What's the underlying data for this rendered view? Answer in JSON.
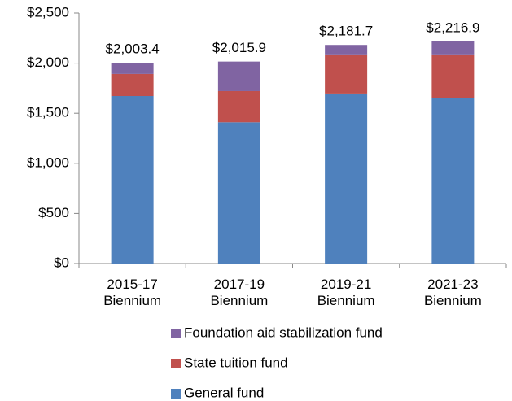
{
  "chart_data": {
    "type": "stacked_bar",
    "categories": [
      "2015-17 Biennium",
      "2017-19 Biennium",
      "2019-21 Biennium",
      "2021-23 Biennium"
    ],
    "series": [
      {
        "name": "General fund",
        "color": "#4f81bd",
        "values": [
          1672,
          1410,
          1697,
          1648
        ]
      },
      {
        "name": "State tuition fund",
        "color": "#c0504d",
        "values": [
          220,
          311,
          382,
          431
        ]
      },
      {
        "name": "Foundation aid stabilization fund",
        "color": "#8064a2",
        "values": [
          111.4,
          294.9,
          102.7,
          137.9
        ]
      }
    ],
    "totals": {
      "values": [
        2003.4,
        2015.9,
        2181.7,
        2216.9
      ],
      "value_labels": [
        "$2,003.4",
        "$2,015.9",
        "$2,181.7",
        "$2,216.9"
      ]
    },
    "ylim": [
      0,
      2500
    ],
    "yticks": [
      {
        "value": 0,
        "label": "$0"
      },
      {
        "value": 500,
        "label": "$500"
      },
      {
        "value": 1000,
        "label": "$1,000"
      },
      {
        "value": 1500,
        "label": "$1,500"
      },
      {
        "value": 2000,
        "label": "$2,000"
      },
      {
        "value": 2500,
        "label": "$2,500"
      }
    ],
    "grid": false
  }
}
